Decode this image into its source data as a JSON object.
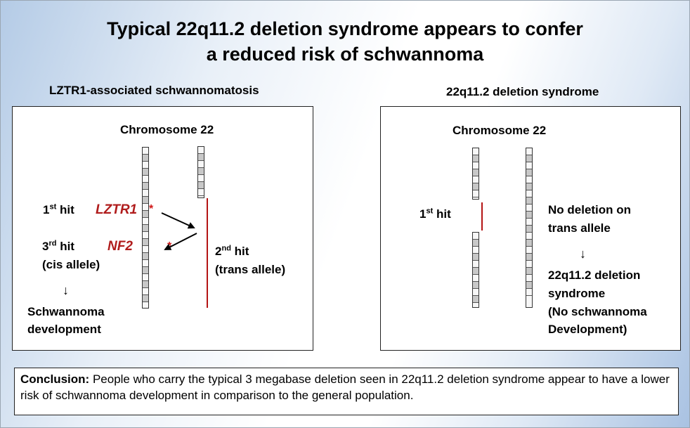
{
  "title": {
    "line1": "Typical 22q11.2 deletion syndrome appears to confer",
    "line2": "a reduced risk of schwannoma"
  },
  "left_panel": {
    "heading": "LZTR1-associated schwannomatosis",
    "chromosome_label": "Chromosome 22",
    "first_hit": {
      "base": "1",
      "sup": "st",
      "rest": " hit"
    },
    "gene_lztr1": "LZTR1",
    "gene_nf2": "NF2",
    "third_hit": {
      "base": "3",
      "sup": "rd",
      "rest": " hit"
    },
    "cis_allele": "(cis allele)",
    "down_arrow": "↓",
    "outcome_line1": "Schwannoma",
    "outcome_line2": "development",
    "second_hit": {
      "base": "2",
      "sup": "nd",
      "rest": " hit"
    },
    "trans_allele": "(trans allele)",
    "star": "*"
  },
  "right_panel": {
    "heading": "22q11.2 deletion syndrome",
    "chromosome_label": "Chromosome 22",
    "first_hit": {
      "base": "1",
      "sup": "st",
      "rest": " hit"
    },
    "no_deletion_line1": "No deletion on",
    "no_deletion_line2": "trans allele",
    "down_arrow": "↓",
    "outcome_line1": "22q11.2 deletion",
    "outcome_line2": "syndrome",
    "outcome_line3": "(No schwannoma",
    "outcome_line4": "Development)"
  },
  "conclusion": {
    "label": "Conclusion:",
    "text": " People who carry the typical 3 megabase deletion seen in 22q11.2 deletion syndrome appear to have a lower risk of schwannoma development in comparison to the general population."
  },
  "colors": {
    "red_marker": "#b41414",
    "gene_text": "#b01c1c"
  }
}
